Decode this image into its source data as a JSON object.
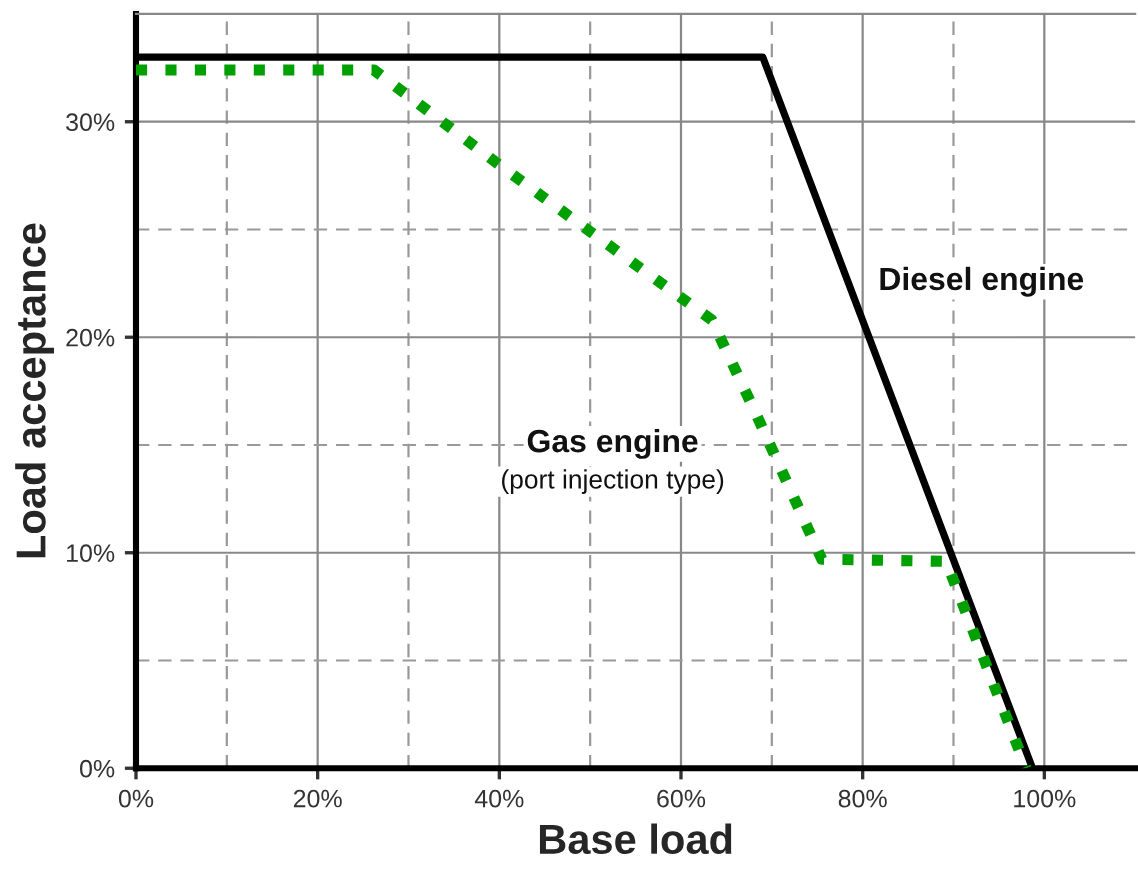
{
  "chart_data": {
    "type": "line",
    "xlabel": "Base load",
    "ylabel": "Load acceptance",
    "xlim": [
      0,
      110
    ],
    "ylim": [
      0,
      35
    ],
    "xticks": [
      {
        "value": 0,
        "label": "0%"
      },
      {
        "value": 10,
        "label": null
      },
      {
        "value": 20,
        "label": "20%"
      },
      {
        "value": 30,
        "label": null
      },
      {
        "value": 40,
        "label": "40%"
      },
      {
        "value": 50,
        "label": null
      },
      {
        "value": 60,
        "label": "60%"
      },
      {
        "value": 70,
        "label": null
      },
      {
        "value": 80,
        "label": "80%"
      },
      {
        "value": 90,
        "label": null
      },
      {
        "value": 100,
        "label": "100%"
      }
    ],
    "yticks": [
      {
        "value": 0,
        "label": "0%"
      },
      {
        "value": 5,
        "label": null
      },
      {
        "value": 10,
        "label": "10%"
      },
      {
        "value": 15,
        "label": null
      },
      {
        "value": 20,
        "label": "20%"
      },
      {
        "value": 25,
        "label": null
      },
      {
        "value": 30,
        "label": "30%"
      }
    ],
    "grid": true,
    "legend": false,
    "marker": "none",
    "series": [
      {
        "name": "Diesel engine",
        "color": "#000000",
        "line_style": "solid",
        "x": [
          0,
          69,
          98.7
        ],
        "values": [
          33,
          33,
          0
        ]
      },
      {
        "name": "Gas engine",
        "color": "#00a000",
        "line_style": "dotted",
        "x": [
          0,
          26.2,
          40,
          50,
          63.4,
          68.2,
          75.5,
          89.2,
          98
        ],
        "values": [
          32.4,
          32.4,
          28,
          24.9,
          20.8,
          16.5,
          9.7,
          9.6,
          0
        ]
      }
    ],
    "annotations": [
      "(port injection type)"
    ]
  }
}
